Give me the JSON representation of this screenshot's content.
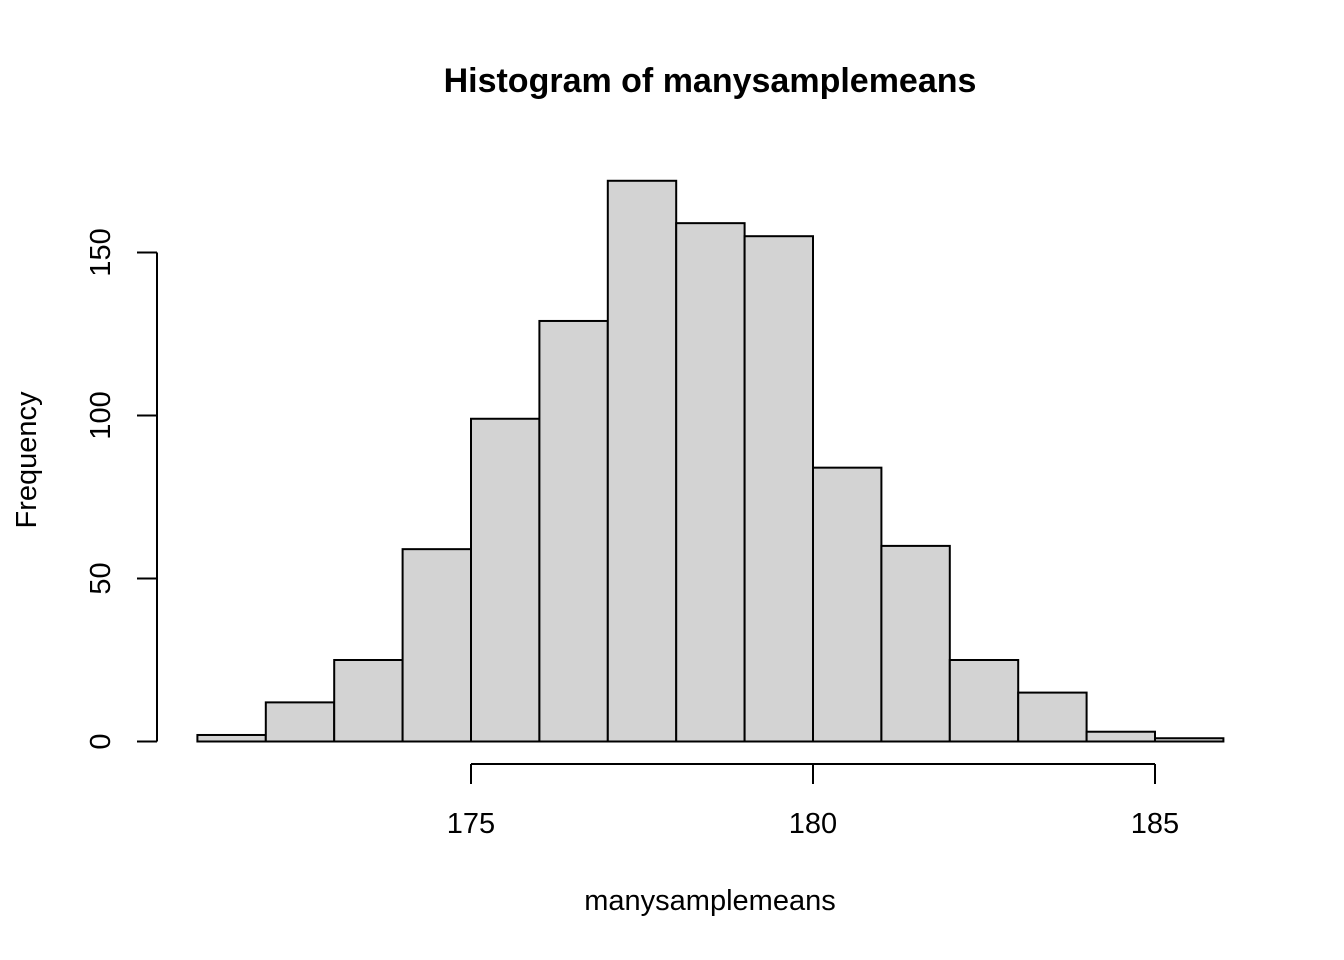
{
  "chart_data": {
    "type": "histogram",
    "title": "Histogram of manysamplemeans",
    "xlabel": "manysamplemeans",
    "ylabel": "Frequency",
    "bins": [
      {
        "x0": 171,
        "x1": 172,
        "count": 2
      },
      {
        "x0": 172,
        "x1": 173,
        "count": 12
      },
      {
        "x0": 173,
        "x1": 174,
        "count": 25
      },
      {
        "x0": 174,
        "x1": 175,
        "count": 59
      },
      {
        "x0": 175,
        "x1": 176,
        "count": 99
      },
      {
        "x0": 176,
        "x1": 177,
        "count": 129
      },
      {
        "x0": 177,
        "x1": 178,
        "count": 172
      },
      {
        "x0": 178,
        "x1": 179,
        "count": 159
      },
      {
        "x0": 179,
        "x1": 180,
        "count": 155
      },
      {
        "x0": 180,
        "x1": 181,
        "count": 84
      },
      {
        "x0": 181,
        "x1": 182,
        "count": 60
      },
      {
        "x0": 182,
        "x1": 183,
        "count": 25
      },
      {
        "x0": 183,
        "x1": 184,
        "count": 15
      },
      {
        "x0": 184,
        "x1": 185,
        "count": 3
      },
      {
        "x0": 185,
        "x1": 186,
        "count": 1
      }
    ],
    "xticks": [
      175,
      180,
      185
    ],
    "yticks": [
      0,
      50,
      100,
      150
    ],
    "xlim": [
      171,
      186
    ],
    "ylim": [
      0,
      172
    ],
    "bar_color": "#d3d3d3",
    "grid": false,
    "legend": "none"
  }
}
